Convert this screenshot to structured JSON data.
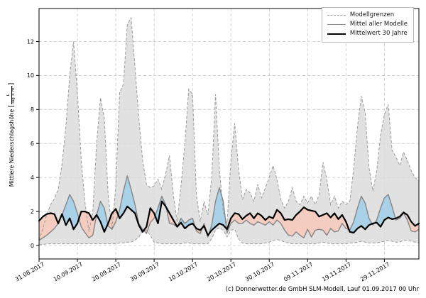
{
  "figure": {
    "caption": "(c) Donnerwetter.de GmbH SLM-Modell, Lauf 01.09.2017 00 Uhr"
  },
  "legend": {
    "position": "upper-right",
    "items": [
      {
        "label": "Modellgrenzen",
        "style": "dashed-gray"
      },
      {
        "label": "Mittel aller Modelle",
        "style": "solid-gray"
      },
      {
        "label": "Mittelwert 30 Jahre",
        "style": "solid-black"
      }
    ]
  },
  "axes": {
    "ylabel_text": "Mittlere Niederschlagshöhe",
    "bracket_open": "[",
    "bracket_close": "]",
    "unit_numerator": "L",
    "unit_denominator": "Tag × m²",
    "yticks": [
      0,
      2,
      4,
      6,
      8,
      10,
      12
    ],
    "xtick_labels": [
      "31.08.2017",
      "10.09.2017",
      "20.09.2017",
      "30.09.2017",
      "10.10.2017",
      "20.10.2017",
      "30.10.2017",
      "09.11.2017",
      "19.11.2017",
      "29.11.2017"
    ]
  },
  "chart_data": {
    "type": "line",
    "title": "",
    "ylabel": "Mittlere Niederschlagshöhe [L / (Tag × m²)]",
    "xlabel": "",
    "x_tick_days": [
      0,
      10,
      20,
      30,
      40,
      50,
      60,
      70,
      80,
      90
    ],
    "x_tick_labels": [
      "31.08.2017",
      "10.09.2017",
      "20.09.2017",
      "30.09.2017",
      "10.10.2017",
      "20.10.2017",
      "30.10.2017",
      "09.11.2017",
      "19.11.2017",
      "29.11.2017"
    ],
    "x_range_days": [
      0,
      99
    ],
    "ylim": [
      -0.79,
      13.94
    ],
    "yticks": [
      0,
      2,
      4,
      6,
      8,
      10,
      12
    ],
    "grid": true,
    "legend_position": "upper right",
    "colors": {
      "band_fill": "#dbdbdb",
      "band_edge": "#9a9a9a",
      "model_mean": "#858585",
      "climate_mean": "#000000",
      "fill_above": "#a9d1e8",
      "fill_below": "#f5cdc0",
      "grid": "#c9c9c9"
    },
    "series": [
      {
        "name": "Modellgrenzen (Maximum)",
        "style": "dashed",
        "values": [
          0.3,
          1.0,
          1.8,
          2.4,
          2.75,
          3.3,
          4.8,
          7.0,
          10.0,
          12.0,
          9.0,
          5.0,
          2.5,
          0.8,
          2.0,
          6.0,
          8.7,
          7.5,
          3.0,
          0.9,
          3.5,
          9.0,
          9.5,
          13.0,
          13.4,
          10.5,
          7.5,
          5.0,
          3.6,
          3.4,
          3.5,
          3.9,
          3.3,
          4.2,
          5.3,
          3.0,
          1.4,
          3.5,
          6.0,
          9.2,
          8.9,
          3.0,
          1.4,
          2.6,
          1.8,
          4.0,
          8.9,
          4.5,
          2.0,
          1.3,
          5.0,
          7.2,
          4.5,
          2.7,
          3.3,
          3.1,
          2.6,
          3.6,
          2.8,
          3.4,
          4.0,
          4.7,
          3.9,
          2.7,
          2.2,
          2.6,
          3.4,
          2.6,
          2.4,
          2.9,
          2.5,
          2.9,
          2.4,
          3.0,
          4.9,
          3.9,
          2.4,
          2.9,
          2.2,
          2.6,
          2.4,
          2.6,
          4.5,
          7.0,
          8.8,
          7.8,
          4.6,
          3.2,
          4.4,
          6.5,
          7.7,
          8.3,
          5.6,
          5.2,
          4.7,
          5.5,
          5.0,
          4.4,
          4.0,
          3.8
        ]
      },
      {
        "name": "Modellgrenzen (Minimum)",
        "style": "dashed",
        "values": [
          0.05,
          0.05,
          0.1,
          0.1,
          0.1,
          0.1,
          0.1,
          0.1,
          0.1,
          0.1,
          0.1,
          0.1,
          0.1,
          0.1,
          0.1,
          0.1,
          0.1,
          0.1,
          0.1,
          0.1,
          0.1,
          0.15,
          0.15,
          0.2,
          0.2,
          0.3,
          0.5,
          0.85,
          0.9,
          0.6,
          0.2,
          0.15,
          0.1,
          0.1,
          0.1,
          0.1,
          0.1,
          0.1,
          0.15,
          0.15,
          0.1,
          0.1,
          0.1,
          0.1,
          0.1,
          0.4,
          0.9,
          1.05,
          0.9,
          0.5,
          0.9,
          0.95,
          0.4,
          0.15,
          0.1,
          0.1,
          0.1,
          0.1,
          0.1,
          0.15,
          0.2,
          0.3,
          0.35,
          0.3,
          0.2,
          0.15,
          0.1,
          0.1,
          0.1,
          0.1,
          0.1,
          0.1,
          0.1,
          0.15,
          0.2,
          0.15,
          0.1,
          0.1,
          0.1,
          0.1,
          0.1,
          0.15,
          0.15,
          0.2,
          0.25,
          0.2,
          0.15,
          0.15,
          0.15,
          0.2,
          0.25,
          0.3,
          0.25,
          0.2,
          0.2,
          0.3,
          0.3,
          0.25,
          0.2,
          0.15
        ]
      },
      {
        "name": "Mittel aller Modelle",
        "style": "solid-gray",
        "values": [
          0.3,
          0.45,
          0.6,
          0.8,
          1.0,
          1.3,
          1.8,
          2.4,
          3.0,
          2.6,
          1.9,
          1.1,
          0.75,
          0.45,
          0.6,
          1.8,
          2.6,
          2.2,
          1.15,
          0.95,
          1.4,
          2.1,
          3.2,
          4.1,
          3.3,
          2.4,
          1.3,
          0.95,
          0.7,
          1.35,
          1.6,
          2.2,
          2.9,
          2.4,
          1.3,
          1.25,
          1.1,
          1.6,
          1.3,
          1.5,
          1.6,
          0.85,
          0.7,
          1.3,
          0.5,
          1.2,
          2.6,
          3.4,
          2.6,
          0.75,
          1.3,
          1.5,
          1.3,
          1.3,
          1.5,
          1.3,
          1.2,
          1.4,
          1.3,
          1.2,
          1.4,
          1.2,
          1.5,
          1.3,
          0.9,
          0.6,
          0.55,
          0.8,
          0.6,
          0.45,
          0.95,
          0.5,
          0.9,
          0.95,
          0.9,
          0.6,
          1.0,
          0.8,
          0.85,
          1.3,
          1.0,
          0.9,
          1.4,
          2.2,
          2.9,
          2.5,
          1.6,
          1.2,
          1.5,
          2.2,
          2.8,
          3.0,
          2.3,
          1.5,
          1.6,
          1.9,
          1.5,
          0.85,
          0.8,
          0.95
        ]
      },
      {
        "name": "Mittelwert 30 Jahre",
        "style": "solid-black",
        "values": [
          1.45,
          1.7,
          1.85,
          1.9,
          1.85,
          1.3,
          1.85,
          1.2,
          1.6,
          0.95,
          1.3,
          2.0,
          2.0,
          1.9,
          1.5,
          1.8,
          1.4,
          0.8,
          1.3,
          1.9,
          2.15,
          1.6,
          1.9,
          2.3,
          2.1,
          1.9,
          1.2,
          0.8,
          1.1,
          2.2,
          1.9,
          1.3,
          2.6,
          2.3,
          1.9,
          1.5,
          1.1,
          1.35,
          1.0,
          1.2,
          1.3,
          1.0,
          0.9,
          1.15,
          0.6,
          0.9,
          1.1,
          1.3,
          1.2,
          0.95,
          1.6,
          1.9,
          1.85,
          1.55,
          1.75,
          1.9,
          1.6,
          1.9,
          1.75,
          1.5,
          1.7,
          1.6,
          2.1,
          1.9,
          1.5,
          1.55,
          1.5,
          1.8,
          2.0,
          2.25,
          2.1,
          2.05,
          2.0,
          1.7,
          1.8,
          1.9,
          1.65,
          1.9,
          1.55,
          1.8,
          1.4,
          0.8,
          0.75,
          1.0,
          1.15,
          0.95,
          1.2,
          1.3,
          1.35,
          1.1,
          1.5,
          1.65,
          1.55,
          1.6,
          1.7,
          1.95,
          1.8,
          1.4,
          1.15,
          1.3
        ]
      }
    ]
  }
}
